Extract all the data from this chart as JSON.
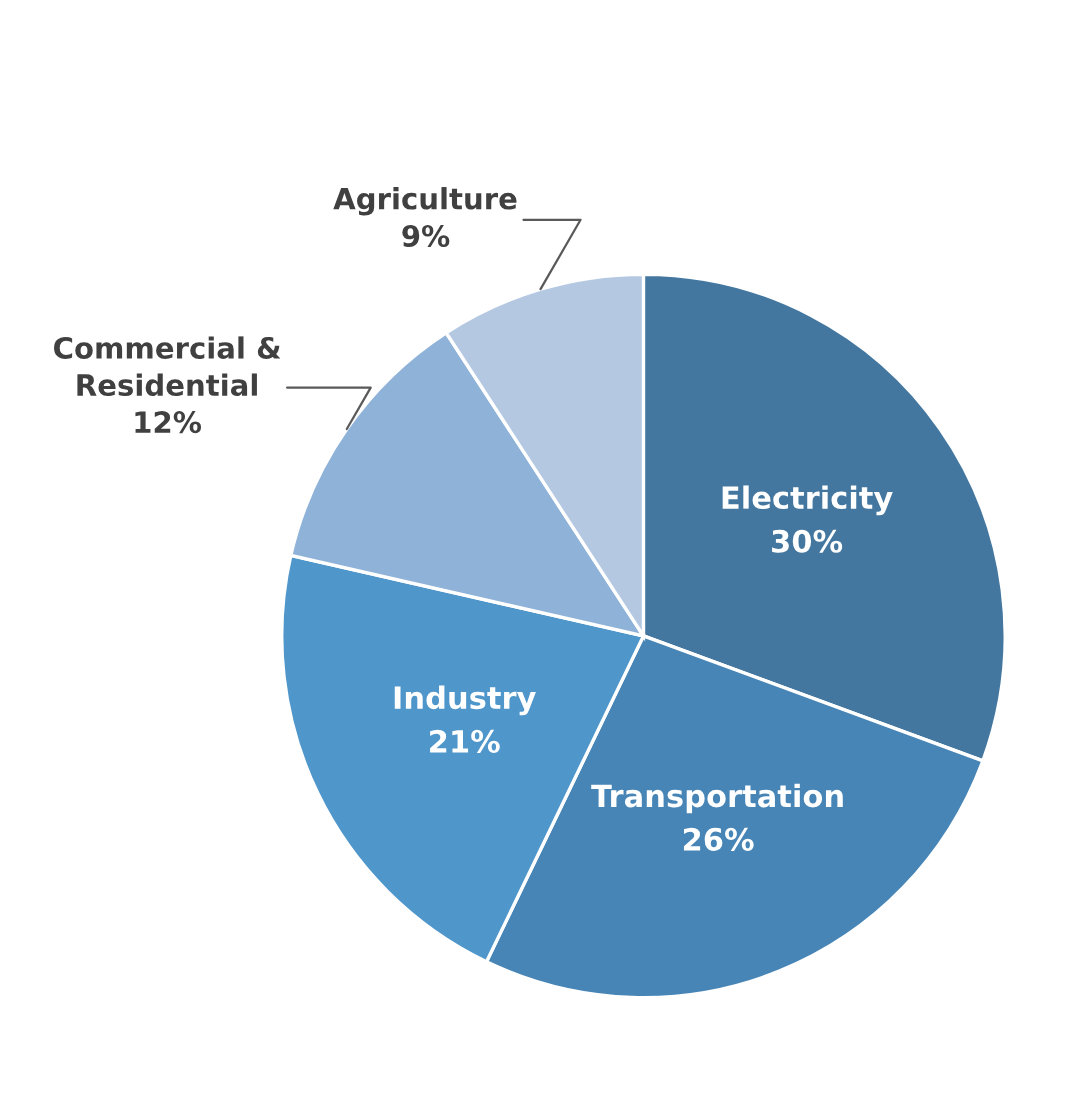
{
  "chart_data": {
    "type": "pie",
    "categories": [
      "Electricity",
      "Transportation",
      "Industry",
      "Commercial &\nResidential",
      "Agriculture"
    ],
    "values": [
      30,
      26,
      21,
      12,
      9
    ],
    "colors": [
      "#44779f",
      "#4785b6",
      "#4f96cb",
      "#8fb2d8",
      "#b4c8e2"
    ],
    "value_labels": [
      "30%",
      "26%",
      "21%",
      "12%",
      "9%"
    ]
  }
}
